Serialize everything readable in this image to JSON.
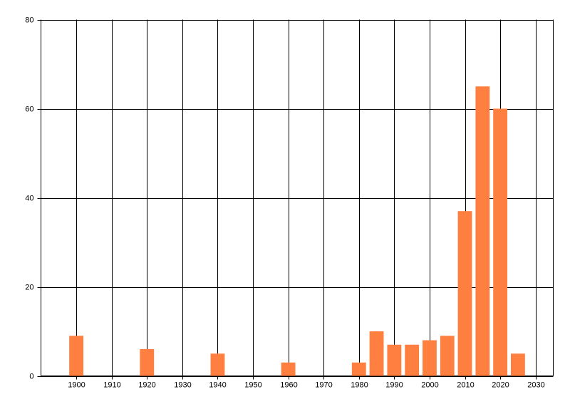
{
  "chart_data": {
    "type": "bar",
    "x": [
      1900,
      1920,
      1940,
      1960,
      1980,
      1985,
      1990,
      1995,
      2000,
      2005,
      2010,
      2015,
      2020,
      2025
    ],
    "values": [
      9,
      6,
      5,
      3,
      3,
      10,
      7,
      7,
      8,
      9,
      37,
      65,
      60,
      5
    ],
    "color": "#ff7f40",
    "xlim": [
      1890,
      2035
    ],
    "xticks": [
      1900,
      1910,
      1920,
      1930,
      1940,
      1950,
      1960,
      1970,
      1980,
      1990,
      2000,
      2010,
      2020,
      2030
    ],
    "ylim": [
      0,
      80
    ],
    "yticks": [
      0,
      20,
      40,
      60,
      80
    ],
    "grid": true
  }
}
